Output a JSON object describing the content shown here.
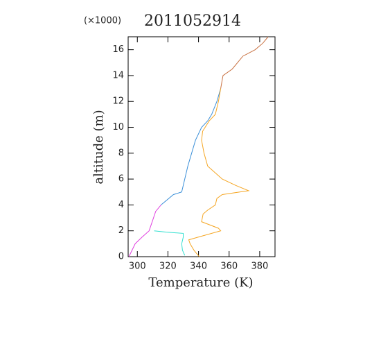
{
  "chart_data": {
    "type": "line",
    "title": "2011052914",
    "y_multiplier": "(×1000)",
    "xlabel": "Temperature (K)",
    "ylabel": "altitude (m)",
    "xlim": [
      294,
      390
    ],
    "ylim": [
      0,
      17
    ],
    "xticks": [
      300,
      320,
      340,
      360,
      380
    ],
    "yticks": [
      0,
      2,
      4,
      6,
      8,
      10,
      12,
      14,
      16
    ],
    "series": [
      {
        "color": "#e040e0",
        "x": [
          294.5,
          298.6,
          303,
          307.7,
          310,
          312,
          315.5
        ],
        "values": [
          0,
          1,
          1.5,
          2,
          2.8,
          3.5,
          4
        ]
      },
      {
        "color": "#3a8fd8",
        "x": [
          315.5,
          323.6,
          329,
          331,
          333,
          335.5,
          338,
          342,
          346,
          348.6,
          352,
          354.5
        ],
        "values": [
          4,
          4.8,
          5,
          6,
          7,
          8,
          9,
          10,
          10.5,
          11,
          12,
          13
        ]
      },
      {
        "color": "#30e0d0",
        "x": [
          331,
          329.5,
          329,
          330,
          330,
          319,
          311
        ],
        "values": [
          0.1,
          0.5,
          1,
          1.5,
          1.8,
          1.9,
          2
        ]
      },
      {
        "color": "#f5a623",
        "x": [
          340.5,
          337,
          334.5,
          333.6,
          339.5,
          354.5,
          353,
          342,
          343,
          346,
          351,
          352,
          355.5,
          372.7,
          364.5,
          355.5,
          346,
          343.6,
          342,
          342.7,
          347,
          351,
          353,
          354.5
        ],
        "values": [
          0,
          0.5,
          1,
          1.3,
          1.5,
          2,
          2.2,
          2.7,
          3.3,
          3.6,
          4,
          4.5,
          4.8,
          5.1,
          5.5,
          6,
          7,
          8,
          9,
          9.7,
          10.5,
          11,
          12,
          13
        ]
      },
      {
        "color": "#c87040",
        "x": [
          354.5,
          356,
          362,
          365.5,
          369,
          377,
          382,
          385.5
        ],
        "values": [
          13,
          14,
          14.5,
          15,
          15.5,
          16,
          16.5,
          17
        ]
      }
    ]
  }
}
